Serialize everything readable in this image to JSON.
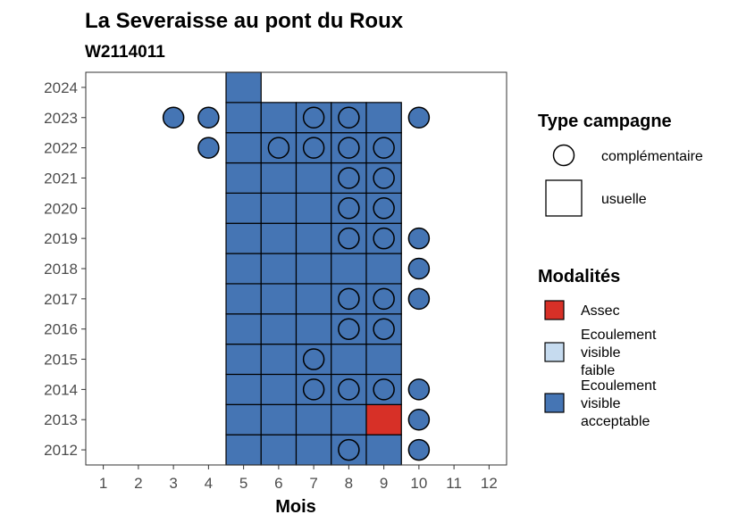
{
  "chart_data": {
    "type": "heatmap",
    "title": "La Severaisse au pont du Roux",
    "subtitle": "W2114011",
    "xlabel": "Mois",
    "ylabel": "",
    "x_ticks": [
      1,
      2,
      3,
      4,
      5,
      6,
      7,
      8,
      9,
      10,
      11,
      12
    ],
    "y_ticks": [
      2012,
      2013,
      2014,
      2015,
      2016,
      2017,
      2018,
      2019,
      2020,
      2021,
      2022,
      2023,
      2024
    ],
    "xlim": [
      0.5,
      12.5
    ],
    "ylim": [
      2011.5,
      2024.5
    ],
    "grid": false,
    "legend_position": "right",
    "legend_shape": {
      "title": "Type campagne",
      "entries": [
        {
          "label": "complémentaire",
          "shape": "circle"
        },
        {
          "label": "usuelle",
          "shape": "square"
        }
      ]
    },
    "legend_fill": {
      "title": "Modalités",
      "entries": [
        {
          "key": "assec",
          "label": "Assec",
          "color": "#D73027"
        },
        {
          "key": "faible",
          "label": "Ecoulement visible faible",
          "label_lines": [
            "Ecoulement",
            "visible",
            "faible"
          ],
          "color": "#C6DBEF"
        },
        {
          "key": "acceptable",
          "label": "Ecoulement visible acceptable",
          "label_lines": [
            "Ecoulement",
            "visible",
            "acceptable"
          ],
          "color": "#4575B4"
        }
      ]
    },
    "usuelle": [
      {
        "year": 2012,
        "months": [
          5,
          6,
          7,
          8,
          9
        ],
        "modalite": [
          "acceptable",
          "acceptable",
          "acceptable",
          "acceptable",
          "acceptable"
        ]
      },
      {
        "year": 2013,
        "months": [
          5,
          6,
          7,
          8,
          9
        ],
        "modalite": [
          "acceptable",
          "acceptable",
          "acceptable",
          "acceptable",
          "assec"
        ]
      },
      {
        "year": 2014,
        "months": [
          5,
          6,
          7,
          8,
          9
        ],
        "modalite": [
          "acceptable",
          "acceptable",
          "acceptable",
          "acceptable",
          "acceptable"
        ]
      },
      {
        "year": 2015,
        "months": [
          5,
          6,
          7,
          8,
          9
        ],
        "modalite": [
          "acceptable",
          "acceptable",
          "acceptable",
          "acceptable",
          "acceptable"
        ]
      },
      {
        "year": 2016,
        "months": [
          5,
          6,
          7,
          8,
          9
        ],
        "modalite": [
          "acceptable",
          "acceptable",
          "acceptable",
          "acceptable",
          "acceptable"
        ]
      },
      {
        "year": 2017,
        "months": [
          5,
          6,
          7,
          8,
          9
        ],
        "modalite": [
          "acceptable",
          "acceptable",
          "acceptable",
          "acceptable",
          "acceptable"
        ]
      },
      {
        "year": 2018,
        "months": [
          5,
          6,
          7,
          8,
          9
        ],
        "modalite": [
          "acceptable",
          "acceptable",
          "acceptable",
          "acceptable",
          "acceptable"
        ]
      },
      {
        "year": 2019,
        "months": [
          5,
          6,
          7,
          8,
          9
        ],
        "modalite": [
          "acceptable",
          "acceptable",
          "acceptable",
          "acceptable",
          "acceptable"
        ]
      },
      {
        "year": 2020,
        "months": [
          5,
          6,
          7,
          8,
          9
        ],
        "modalite": [
          "acceptable",
          "acceptable",
          "acceptable",
          "acceptable",
          "acceptable"
        ]
      },
      {
        "year": 2021,
        "months": [
          5,
          6,
          7,
          8,
          9
        ],
        "modalite": [
          "acceptable",
          "acceptable",
          "acceptable",
          "acceptable",
          "acceptable"
        ]
      },
      {
        "year": 2022,
        "months": [
          5,
          6,
          7,
          8,
          9
        ],
        "modalite": [
          "acceptable",
          "acceptable",
          "acceptable",
          "acceptable",
          "acceptable"
        ]
      },
      {
        "year": 2023,
        "months": [
          5,
          6,
          7,
          8,
          9
        ],
        "modalite": [
          "acceptable",
          "acceptable",
          "acceptable",
          "acceptable",
          "acceptable"
        ]
      },
      {
        "year": 2024,
        "months": [
          5
        ],
        "modalite": [
          "acceptable"
        ]
      }
    ],
    "complementaire": [
      {
        "year": 2012,
        "months": [
          8,
          10
        ],
        "modalite": [
          "acceptable",
          "acceptable"
        ]
      },
      {
        "year": 2013,
        "months": [
          10
        ],
        "modalite": [
          "acceptable"
        ]
      },
      {
        "year": 2014,
        "months": [
          7,
          8,
          9,
          10
        ],
        "modalite": [
          "acceptable",
          "acceptable",
          "acceptable",
          "acceptable"
        ]
      },
      {
        "year": 2015,
        "months": [
          7
        ],
        "modalite": [
          "acceptable"
        ]
      },
      {
        "year": 2016,
        "months": [
          8,
          9
        ],
        "modalite": [
          "acceptable",
          "acceptable"
        ]
      },
      {
        "year": 2017,
        "months": [
          8,
          9,
          10
        ],
        "modalite": [
          "acceptable",
          "acceptable",
          "acceptable"
        ]
      },
      {
        "year": 2018,
        "months": [
          10
        ],
        "modalite": [
          "acceptable"
        ]
      },
      {
        "year": 2019,
        "months": [
          8,
          9,
          10
        ],
        "modalite": [
          "acceptable",
          "acceptable",
          "acceptable"
        ]
      },
      {
        "year": 2020,
        "months": [
          8,
          9
        ],
        "modalite": [
          "acceptable",
          "acceptable"
        ]
      },
      {
        "year": 2021,
        "months": [
          8,
          9
        ],
        "modalite": [
          "acceptable",
          "acceptable"
        ]
      },
      {
        "year": 2022,
        "months": [
          4,
          6,
          7,
          8,
          9
        ],
        "modalite": [
          "acceptable",
          "acceptable",
          "acceptable",
          "acceptable",
          "acceptable"
        ]
      },
      {
        "year": 2023,
        "months": [
          3,
          4,
          7,
          8,
          10
        ],
        "modalite": [
          "acceptable",
          "acceptable",
          "acceptable",
          "acceptable",
          "acceptable"
        ]
      }
    ]
  }
}
